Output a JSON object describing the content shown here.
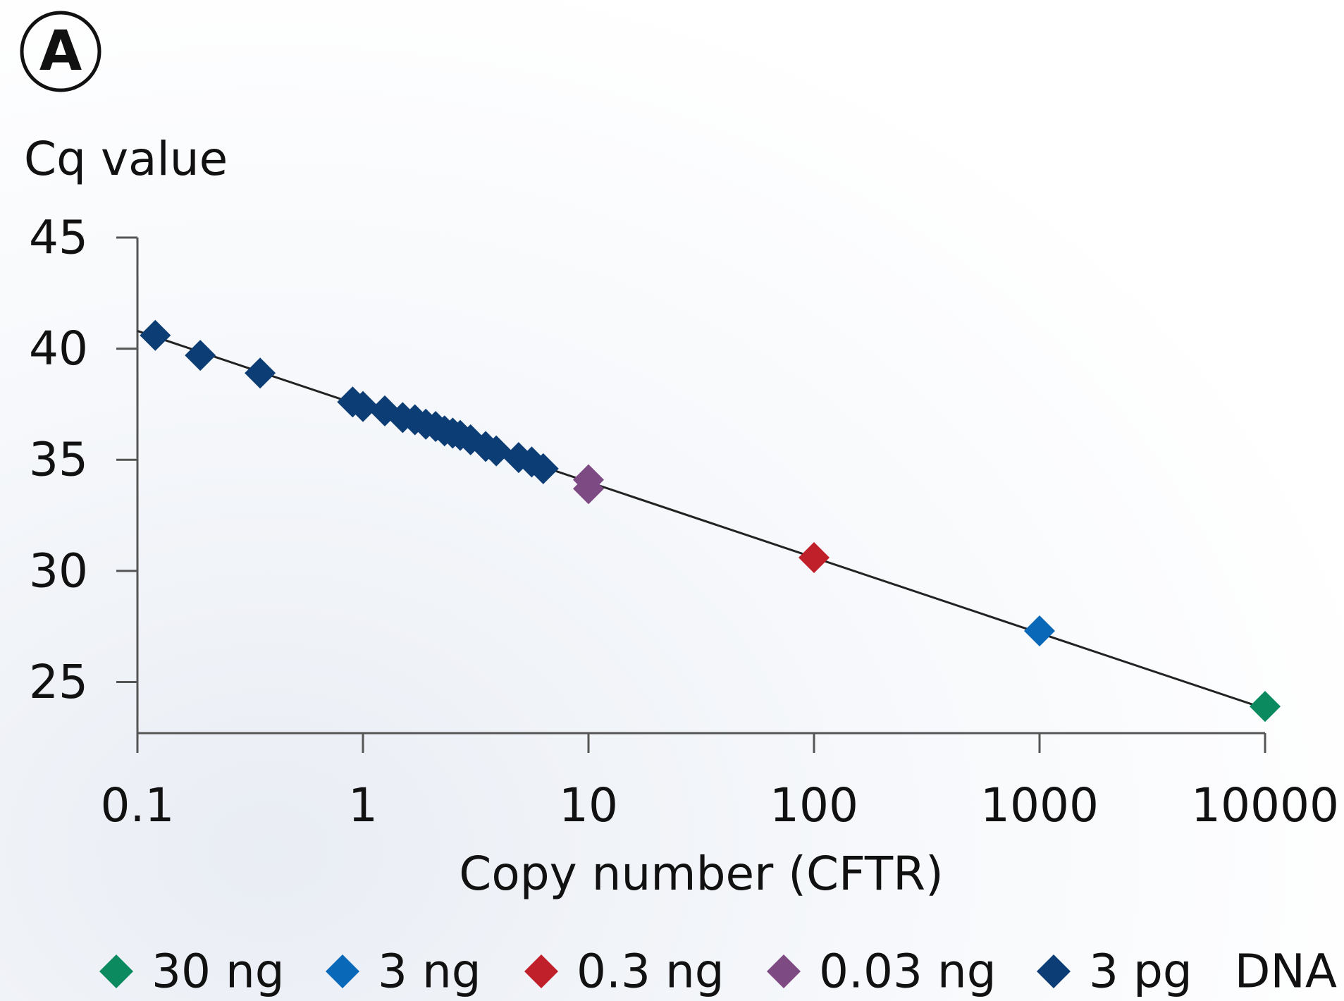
{
  "panel_label": "A",
  "chart_data": {
    "type": "scatter",
    "ylabel": "Cq value",
    "xlabel": "Copy number (CFTR)",
    "x_scale": "log",
    "xlim": [
      0.1,
      10000
    ],
    "ylim": [
      22.7,
      45
    ],
    "y_ticks": [
      25,
      30,
      35,
      40,
      45
    ],
    "x_ticks": [
      0.1,
      1,
      10,
      100,
      1000,
      10000
    ],
    "x_tick_labels": [
      "0.1",
      "1",
      "10",
      "100",
      "1000",
      "10000"
    ],
    "y_tick_labels": [
      "25",
      "30",
      "35",
      "40",
      "45"
    ],
    "grid": false,
    "legend_position": "bottom",
    "legend_suffix": "DNA",
    "trendline": {
      "x": [
        0.1,
        10000
      ],
      "y": [
        40.8,
        23.8
      ]
    },
    "series": [
      {
        "name": "30 ng",
        "color": "#0a8a5e",
        "points": [
          [
            10000,
            23.9
          ]
        ]
      },
      {
        "name": "3 ng",
        "color": "#0a68b8",
        "points": [
          [
            1000,
            27.3
          ]
        ]
      },
      {
        "name": "0.3 ng",
        "color": "#c0202a",
        "points": [
          [
            100,
            30.6
          ]
        ]
      },
      {
        "name": "0.03 ng",
        "color": "#7d4a83",
        "points": [
          [
            10,
            34.1
          ],
          [
            10,
            33.7
          ]
        ]
      },
      {
        "name": "3 pg",
        "color": "#0d3d75",
        "points": [
          [
            0.12,
            40.6
          ],
          [
            0.19,
            39.7
          ],
          [
            0.35,
            38.9
          ],
          [
            0.9,
            37.6
          ],
          [
            1.0,
            37.4
          ],
          [
            1.25,
            37.2
          ],
          [
            1.5,
            36.9
          ],
          [
            1.7,
            36.8
          ],
          [
            1.9,
            36.6
          ],
          [
            2.1,
            36.5
          ],
          [
            2.3,
            36.3
          ],
          [
            2.5,
            36.2
          ],
          [
            2.7,
            36.1
          ],
          [
            3.0,
            35.9
          ],
          [
            3.5,
            35.6
          ],
          [
            3.9,
            35.4
          ],
          [
            4.9,
            35.1
          ],
          [
            5.6,
            34.9
          ],
          [
            6.3,
            34.6
          ]
        ]
      }
    ]
  }
}
